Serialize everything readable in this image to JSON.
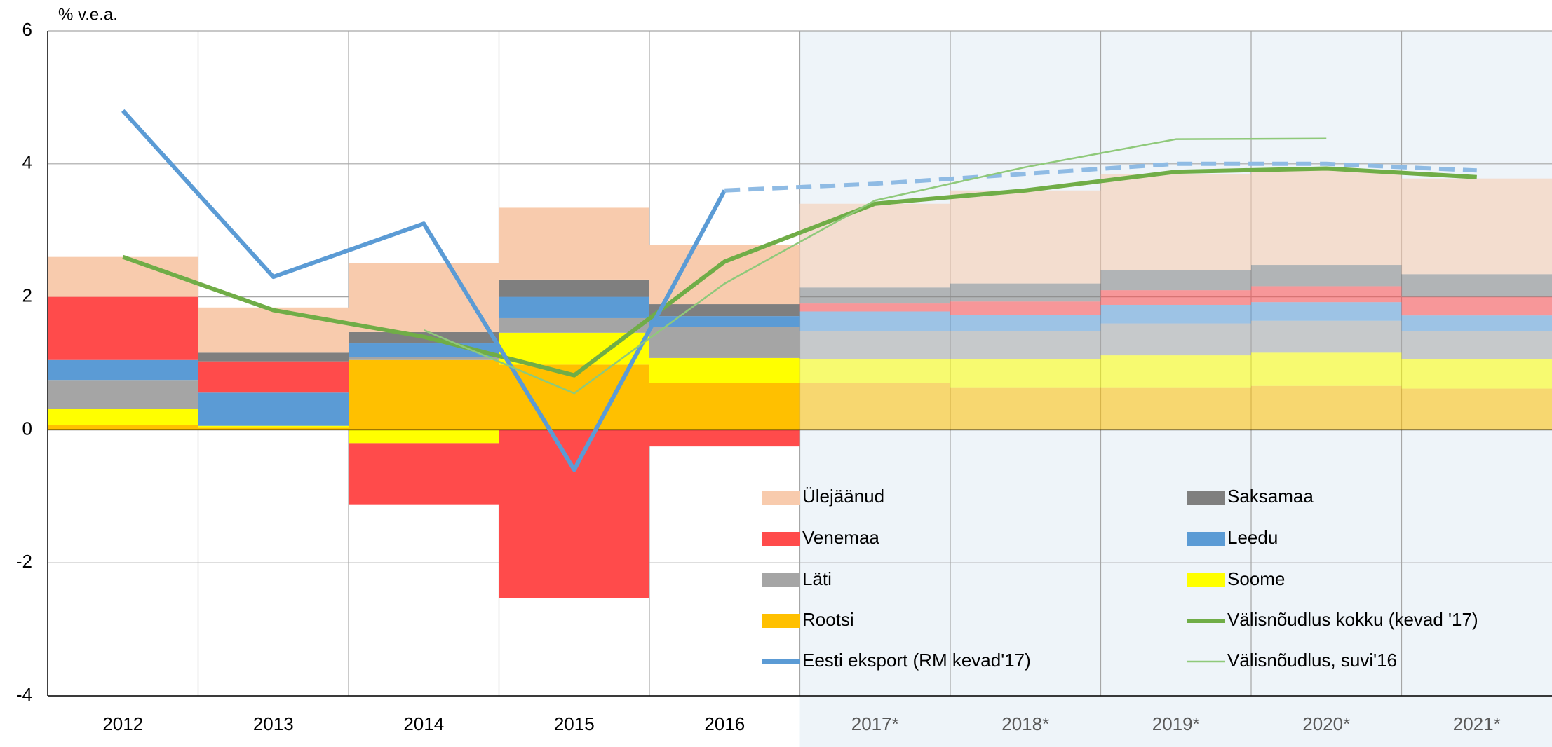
{
  "chart_data": {
    "type": "bar-line",
    "y_axis_label": "% v.e.a.",
    "categories": [
      "2012",
      "2013",
      "2014",
      "2015",
      "2016",
      "2017*",
      "2018*",
      "2019*",
      "2020*",
      "2021*"
    ],
    "shaded_from": "2017*",
    "ylim": [
      -4,
      6
    ],
    "yticks": [
      -4,
      -2,
      0,
      2,
      4,
      6
    ],
    "grid": true,
    "series": [
      {
        "name": "Ülejäänud",
        "kind": "bar",
        "color": "#f8cbad",
        "values": [
          0.6,
          0.68,
          1.04,
          1.08,
          0.89,
          1.26,
          1.4,
          1.45,
          1.42,
          1.44
        ]
      },
      {
        "name": "Saksamaa",
        "kind": "bar",
        "color": "#7f7f7f",
        "values": [
          0,
          0.13,
          0.17,
          0.26,
          0.18,
          0.24,
          0.27,
          0.3,
          0.32,
          0.34
        ]
      },
      {
        "name": "Venemaa",
        "kind": "bar",
        "color": "#ff4b4b",
        "values": [
          0.95,
          0.47,
          -0.92,
          -2.53,
          -0.25,
          0.12,
          0.2,
          0.22,
          0.24,
          0.28
        ]
      },
      {
        "name": "Leedu",
        "kind": "bar",
        "color": "#5b9bd5",
        "values": [
          0.3,
          0.5,
          0.2,
          0.32,
          0.16,
          0.3,
          0.25,
          0.28,
          0.28,
          0.24
        ]
      },
      {
        "name": "Läti",
        "kind": "bar",
        "color": "#a5a5a5",
        "values": [
          0.43,
          0,
          0.05,
          0.22,
          0.47,
          0.42,
          0.42,
          0.48,
          0.48,
          0.42
        ]
      },
      {
        "name": "Soome",
        "kind": "bar",
        "color": "#ffff00",
        "values": [
          0.25,
          0.03,
          -0.2,
          0.48,
          0.38,
          0.36,
          0.42,
          0.48,
          0.5,
          0.44
        ]
      },
      {
        "name": "Rootsi",
        "kind": "bar",
        "color": "#ffc000",
        "values": [
          0.07,
          0.03,
          1.05,
          0.98,
          0.7,
          0.7,
          0.64,
          0.64,
          0.66,
          0.62
        ]
      },
      {
        "name": "Välisnõudlus kokku (kevad '17)",
        "kind": "line",
        "color": "#70ad47",
        "width": 6,
        "values": [
          2.6,
          1.8,
          1.4,
          0.82,
          2.53,
          3.4,
          3.6,
          3.88,
          3.93,
          3.8
        ]
      },
      {
        "name": "Eesti eksport (RM kevad'17)",
        "kind": "line",
        "color": "#5b9bd5",
        "dash_color": "#8fbbe4",
        "width": 6,
        "dashed_from": "2016",
        "values": [
          4.8,
          2.3,
          3.1,
          -0.6,
          3.6,
          3.7,
          3.85,
          4.0,
          4.0,
          3.9
        ]
      },
      {
        "name": "Välisnõudlus, suvi'16",
        "kind": "line",
        "color": "#8fc97a",
        "width": 2.5,
        "values": [
          null,
          null,
          1.5,
          0.55,
          2.2,
          3.45,
          3.95,
          4.37,
          4.38,
          null
        ]
      }
    ]
  }
}
